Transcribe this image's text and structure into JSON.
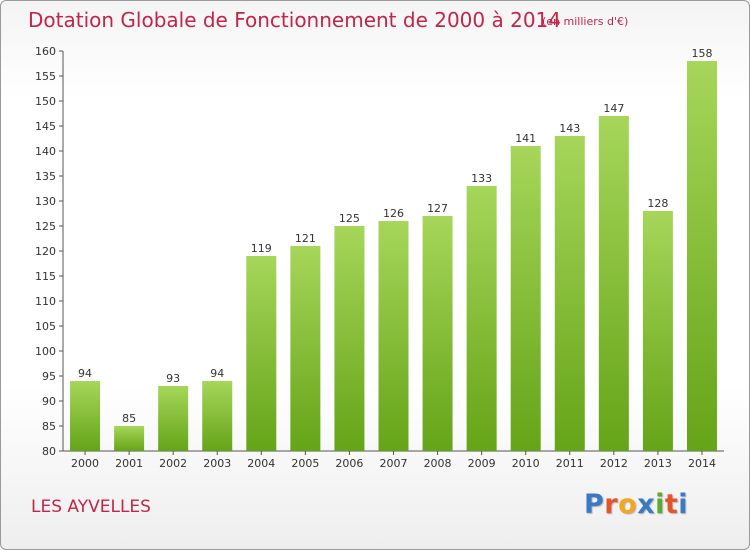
{
  "header": {
    "title": "Dotation Globale de Fonctionnement de 2000 à 2014",
    "subtitle": "(en milliers d'€)"
  },
  "footer": {
    "commune": "LES AYVELLES",
    "brand": [
      "P",
      "r",
      "o",
      "x",
      "i",
      "t",
      "i"
    ],
    "brand_colors": [
      "#3a79c4",
      "#e4552a",
      "#f2a623",
      "#3a79c4",
      "#5cab2e",
      "#e4552a",
      "#3a79c4"
    ]
  },
  "colors": {
    "bar_top": "#a6d65a",
    "bar_bottom": "#65a418",
    "title": "#c0264a"
  },
  "chart_data": {
    "type": "bar",
    "categories": [
      "2000",
      "2001",
      "2002",
      "2003",
      "2004",
      "2005",
      "2006",
      "2007",
      "2008",
      "2009",
      "2010",
      "2011",
      "2012",
      "2013",
      "2014"
    ],
    "values": [
      94,
      85,
      93,
      94,
      119,
      121,
      125,
      126,
      127,
      133,
      141,
      143,
      147,
      128,
      158
    ],
    "ylim": [
      80,
      160
    ],
    "yticks": [
      80,
      85,
      90,
      95,
      100,
      105,
      110,
      115,
      120,
      125,
      130,
      135,
      140,
      145,
      150,
      155,
      160
    ],
    "grid": false
  }
}
